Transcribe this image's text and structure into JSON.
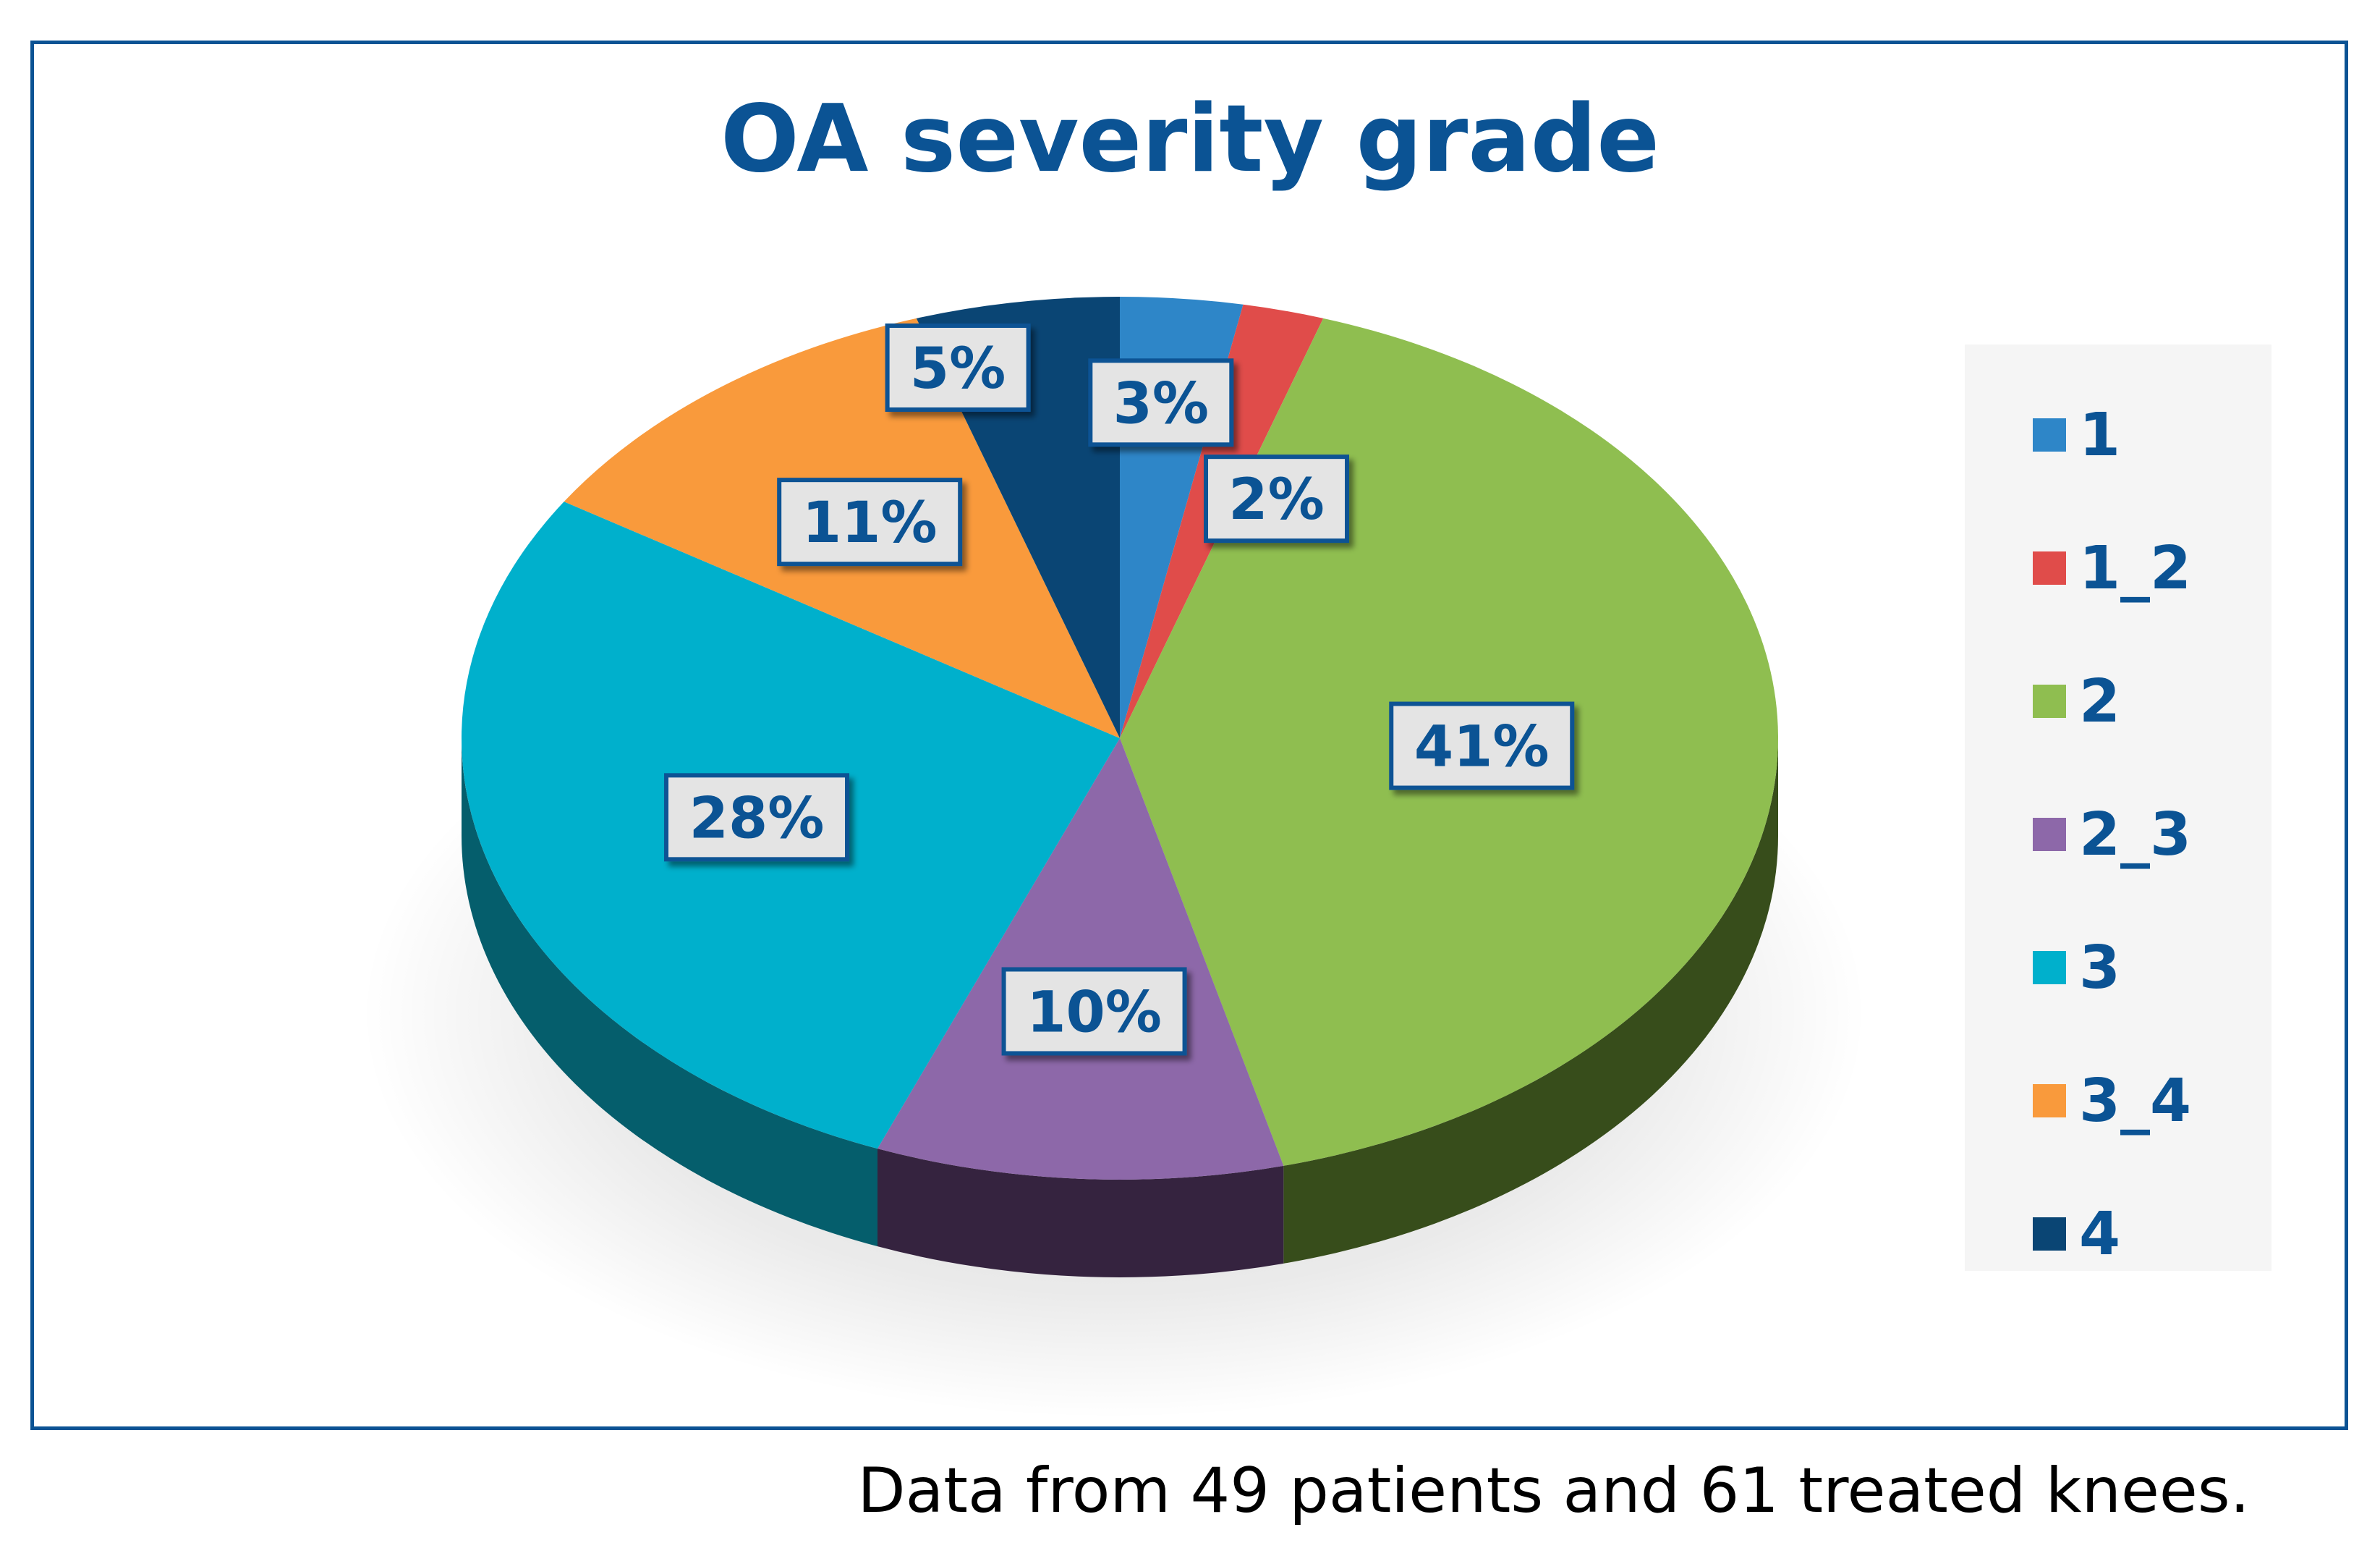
{
  "footnote": "Data from 49 patients and 61 treated knees.",
  "chart_data": {
    "type": "pie",
    "title": "OA severity grade",
    "legend_position": "right",
    "slices": [
      {
        "label": "1",
        "value": 3,
        "display": "3%",
        "color": "#2e86c8",
        "side_color": "#1b5a8a"
      },
      {
        "label": "1_2",
        "value": 2,
        "display": "2%",
        "color": "#e04c4a",
        "side_color": "#8e2826"
      },
      {
        "label": "2",
        "value": 41,
        "display": "41%",
        "color": "#8fbe50",
        "side_color": "#374d1b"
      },
      {
        "label": "2_3",
        "value": 10,
        "display": "10%",
        "color": "#8d68a9",
        "side_color": "#35233f"
      },
      {
        "label": "3",
        "value": 28,
        "display": "28%",
        "color": "#00b0cc",
        "side_color": "#055e6c"
      },
      {
        "label": "3_4",
        "value": 11,
        "display": "11%",
        "color": "#f99a3c",
        "side_color": "#9c5614"
      },
      {
        "label": "4",
        "value": 5,
        "display": "5%",
        "color": "#0a4574",
        "side_color": "#062c4b"
      }
    ]
  }
}
